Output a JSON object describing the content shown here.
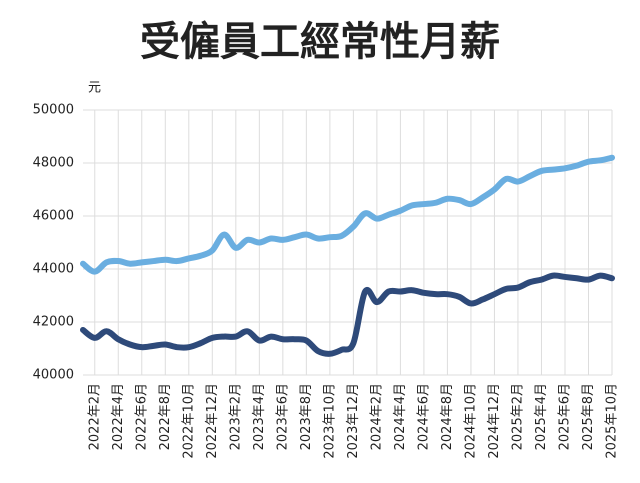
{
  "chart_data": {
    "type": "line",
    "title": "受僱員工經常性月薪",
    "y_axis_label": "元",
    "categories": [
      null,
      "2022年2月",
      null,
      "2022年4月",
      null,
      "2022年6月",
      null,
      "2022年8月",
      null,
      "2022年10月",
      null,
      "2022年12月",
      null,
      "2023年2月",
      null,
      "2023年4月",
      null,
      "2023年6月",
      null,
      "2023年8月",
      null,
      "2023年10月",
      null,
      "2023年12月",
      null,
      "2024年2月",
      null,
      "2024年4月",
      null,
      "2024年6月",
      null,
      "2024年8月",
      null,
      "2024年10月",
      null,
      "2024年12月",
      null,
      "2025年2月",
      null,
      "2025年4月",
      null,
      "2025年6月",
      null,
      "2025年8月",
      null,
      "2025年10月"
    ],
    "series": [
      {
        "color": "#6aaee0",
        "values": [
          44200,
          43900,
          44250,
          44300,
          44200,
          44250,
          44300,
          44350,
          44300,
          44400,
          44500,
          44700,
          45300,
          44800,
          45100,
          45000,
          45150,
          45100,
          45200,
          45300,
          45150,
          45200,
          45250,
          45600,
          46100,
          45900,
          46050,
          46200,
          46400,
          46450,
          46500,
          46650,
          46600,
          46450,
          46700,
          47000,
          47400,
          47300,
          47500,
          47700,
          47750,
          47800,
          47900,
          48050,
          48100,
          48200
        ]
      },
      {
        "color": "#2e4a7a",
        "values": [
          41700,
          41400,
          41650,
          41350,
          41150,
          41050,
          41100,
          41150,
          41050,
          41050,
          41200,
          41400,
          41450,
          41450,
          41650,
          41300,
          41450,
          41350,
          41350,
          41300,
          40900,
          40800,
          40950,
          41200,
          43150,
          42750,
          43150,
          43150,
          43200,
          43100,
          43050,
          43050,
          42950,
          42700,
          42850,
          43050,
          43250,
          43300,
          43500,
          43600,
          43750,
          43700,
          43650,
          43600,
          43750,
          43650
        ]
      }
    ],
    "ylim": [
      40000,
      50000
    ],
    "yticks": [
      40000,
      42000,
      44000,
      46000,
      48000,
      50000
    ],
    "grid": true
  }
}
